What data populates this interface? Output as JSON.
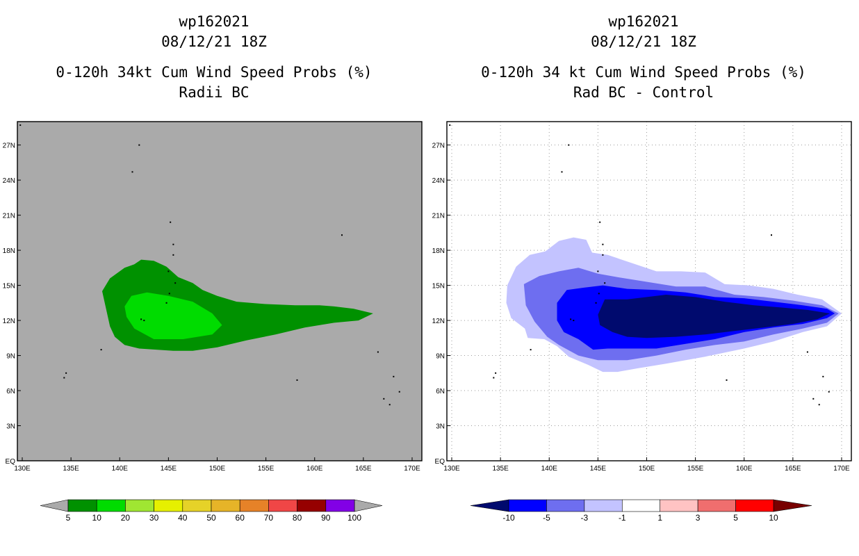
{
  "colors": {
    "panel_left_bg": "#aaaaaa",
    "green_dark": "#009100",
    "green_light": "#00dc00",
    "navy": "#000a6e",
    "blue": "#0000ff",
    "blue_mid": "#6e6ef0",
    "lavender": "#c3c3ff"
  },
  "chart_data": [
    {
      "type": "heatmap",
      "id": "left",
      "title_lines": [
        "wp162021",
        "08/12/21 18Z",
        "0-120h 34kt Cum Wind Speed Probs (%)",
        "Radii BC"
      ],
      "xlim": [
        129.5,
        171
      ],
      "ylim": [
        0,
        29
      ],
      "x_ticks": [
        130,
        135,
        140,
        145,
        150,
        155,
        160,
        165,
        170
      ],
      "x_tick_labels": [
        "130E",
        "135E",
        "140E",
        "145E",
        "150E",
        "155E",
        "160E",
        "165E",
        "170E"
      ],
      "y_ticks": [
        0,
        3,
        6,
        9,
        12,
        15,
        18,
        21,
        24,
        27
      ],
      "y_tick_labels": [
        "EQ",
        "3N",
        "6N",
        "9N",
        "12N",
        "15N",
        "18N",
        "21N",
        "24N",
        "27N"
      ],
      "grid": false,
      "contours": [
        {
          "level": 5,
          "color": "#009100",
          "points": [
            [
              138.2,
              14.5
            ],
            [
              139.0,
              15.6
            ],
            [
              140.5,
              16.5
            ],
            [
              141.5,
              16.8
            ],
            [
              142.2,
              17.2
            ],
            [
              143.5,
              17.1
            ],
            [
              144.8,
              16.6
            ],
            [
              146.0,
              15.7
            ],
            [
              147.5,
              15.2
            ],
            [
              148.5,
              14.6
            ],
            [
              150.0,
              14.1
            ],
            [
              152.0,
              13.6
            ],
            [
              155.0,
              13.4
            ],
            [
              158.0,
              13.3
            ],
            [
              160.5,
              13.3
            ],
            [
              162.0,
              13.2
            ],
            [
              164.0,
              13.0
            ],
            [
              166.0,
              12.6
            ],
            [
              164.5,
              12.0
            ],
            [
              162.0,
              11.8
            ],
            [
              159.0,
              11.4
            ],
            [
              156.0,
              10.8
            ],
            [
              153.0,
              10.3
            ],
            [
              150.0,
              9.7
            ],
            [
              147.5,
              9.4
            ],
            [
              145.5,
              9.4
            ],
            [
              142.0,
              9.6
            ],
            [
              140.5,
              9.9
            ],
            [
              139.5,
              10.6
            ],
            [
              139.0,
              11.5
            ],
            [
              138.6,
              13.0
            ]
          ]
        },
        {
          "level": 10,
          "color": "#00dc00",
          "points": [
            [
              140.5,
              13.2
            ],
            [
              141.2,
              14.1
            ],
            [
              142.8,
              14.4
            ],
            [
              145.0,
              14.1
            ],
            [
              147.5,
              13.6
            ],
            [
              149.5,
              12.6
            ],
            [
              150.5,
              11.6
            ],
            [
              149.5,
              10.8
            ],
            [
              146.5,
              10.4
            ],
            [
              143.5,
              10.4
            ],
            [
              141.5,
              11.3
            ],
            [
              140.7,
              12.3
            ]
          ]
        }
      ],
      "colorbar": {
        "labels": [
          "5",
          "10",
          "20",
          "30",
          "40",
          "50",
          "60",
          "70",
          "80",
          "90",
          "100"
        ],
        "colors": [
          "#009100",
          "#00dc00",
          "#a0e632",
          "#e6f000",
          "#e6d228",
          "#e6b428",
          "#e68228",
          "#f04646",
          "#960000",
          "#8200e6"
        ],
        "end_colors": [
          "#aaaaaa",
          "#aaaaaa"
        ]
      }
    },
    {
      "type": "heatmap",
      "id": "right",
      "title_lines": [
        "wp162021",
        "08/12/21 18Z",
        "0-120h 34 kt Cum Wind Speed Probs (%)",
        "Rad BC - Control"
      ],
      "xlim": [
        129.5,
        171
      ],
      "ylim": [
        0,
        29
      ],
      "x_ticks": [
        130,
        135,
        140,
        145,
        150,
        155,
        160,
        165,
        170
      ],
      "x_tick_labels": [
        "130E",
        "135E",
        "140E",
        "145E",
        "150E",
        "155E",
        "160E",
        "165E",
        "170E"
      ],
      "y_ticks": [
        0,
        3,
        6,
        9,
        12,
        15,
        18,
        21,
        24,
        27
      ],
      "y_tick_labels": [
        "EQ",
        "3N",
        "6N",
        "9N",
        "12N",
        "15N",
        "18N",
        "21N",
        "24N",
        "27N"
      ],
      "grid": true,
      "contours": [
        {
          "level": -1,
          "color": "#c3c3ff",
          "points": [
            [
              135.7,
              15.0
            ],
            [
              136.6,
              16.6
            ],
            [
              138.0,
              17.6
            ],
            [
              139.6,
              17.9
            ],
            [
              141.0,
              18.8
            ],
            [
              142.5,
              19.1
            ],
            [
              143.8,
              18.9
            ],
            [
              144.4,
              17.8
            ],
            [
              146.0,
              17.6
            ],
            [
              148.5,
              16.9
            ],
            [
              151.0,
              16.2
            ],
            [
              153.5,
              16.2
            ],
            [
              156.0,
              16.1
            ],
            [
              158.0,
              15.1
            ],
            [
              160.5,
              15.0
            ],
            [
              163.0,
              14.7
            ],
            [
              165.5,
              14.2
            ],
            [
              168.0,
              13.8
            ],
            [
              170.0,
              12.6
            ],
            [
              168.5,
              11.5
            ],
            [
              166.0,
              11.0
            ],
            [
              163.0,
              10.2
            ],
            [
              160.0,
              9.6
            ],
            [
              156.0,
              8.9
            ],
            [
              152.0,
              8.3
            ],
            [
              149.0,
              7.9
            ],
            [
              147.0,
              7.6
            ],
            [
              145.5,
              7.6
            ],
            [
              144.0,
              8.2
            ],
            [
              142.0,
              8.9
            ],
            [
              140.8,
              9.8
            ],
            [
              139.5,
              10.4
            ],
            [
              137.8,
              10.5
            ],
            [
              137.5,
              11.3
            ],
            [
              136.1,
              12.2
            ],
            [
              135.6,
              13.5
            ]
          ]
        },
        {
          "level": -3,
          "color": "#6e6ef0",
          "points": [
            [
              137.4,
              15.1
            ],
            [
              139.0,
              15.8
            ],
            [
              141.0,
              16.2
            ],
            [
              143.0,
              16.5
            ],
            [
              145.0,
              16.0
            ],
            [
              147.0,
              15.7
            ],
            [
              150.0,
              15.3
            ],
            [
              153.0,
              14.9
            ],
            [
              156.0,
              14.9
            ],
            [
              159.0,
              14.2
            ],
            [
              162.0,
              14.0
            ],
            [
              165.0,
              13.7
            ],
            [
              168.0,
              13.3
            ],
            [
              169.7,
              12.6
            ],
            [
              168.5,
              11.8
            ],
            [
              166.0,
              11.3
            ],
            [
              163.0,
              10.8
            ],
            [
              160.0,
              10.2
            ],
            [
              157.0,
              9.9
            ],
            [
              154.0,
              9.5
            ],
            [
              151.0,
              9.0
            ],
            [
              148.0,
              8.6
            ],
            [
              145.0,
              8.6
            ],
            [
              143.0,
              9.0
            ],
            [
              141.0,
              9.9
            ],
            [
              139.8,
              10.6
            ],
            [
              138.5,
              11.9
            ],
            [
              137.6,
              13.3
            ]
          ]
        },
        {
          "level": -5,
          "color": "#0000ff",
          "points": [
            [
              140.8,
              13.5
            ],
            [
              141.8,
              14.6
            ],
            [
              143.5,
              14.8
            ],
            [
              145.5,
              15.0
            ],
            [
              148.0,
              14.7
            ],
            [
              151.0,
              14.6
            ],
            [
              154.0,
              14.4
            ],
            [
              157.0,
              14.0
            ],
            [
              160.0,
              13.9
            ],
            [
              163.0,
              13.6
            ],
            [
              166.0,
              13.3
            ],
            [
              168.5,
              13.0
            ],
            [
              169.3,
              12.6
            ],
            [
              168.5,
              12.2
            ],
            [
              166.0,
              11.7
            ],
            [
              163.0,
              11.4
            ],
            [
              160.0,
              11.0
            ],
            [
              157.0,
              10.4
            ],
            [
              154.0,
              10.0
            ],
            [
              151.0,
              9.6
            ],
            [
              148.0,
              9.6
            ],
            [
              146.0,
              9.6
            ],
            [
              144.5,
              9.5
            ],
            [
              143.0,
              10.4
            ],
            [
              141.5,
              11.0
            ],
            [
              140.8,
              12.0
            ]
          ]
        },
        {
          "level": -10,
          "color": "#000a6e",
          "points": [
            [
              145.0,
              12.5
            ],
            [
              145.7,
              13.8
            ],
            [
              148.0,
              13.8
            ],
            [
              150.0,
              14.0
            ],
            [
              152.0,
              14.2
            ],
            [
              155.0,
              14.0
            ],
            [
              158.0,
              13.6
            ],
            [
              161.0,
              13.3
            ],
            [
              164.0,
              13.1
            ],
            [
              166.5,
              12.9
            ],
            [
              168.8,
              12.6
            ],
            [
              167.5,
              12.1
            ],
            [
              165.0,
              11.7
            ],
            [
              162.0,
              11.4
            ],
            [
              159.0,
              11.1
            ],
            [
              156.0,
              10.8
            ],
            [
              153.0,
              10.6
            ],
            [
              150.0,
              10.5
            ],
            [
              148.0,
              10.6
            ],
            [
              146.5,
              11.0
            ],
            [
              145.2,
              11.6
            ]
          ]
        }
      ],
      "colorbar": {
        "labels": [
          "-10",
          "-5",
          "-3",
          "-1",
          "1",
          "3",
          "5",
          "10"
        ],
        "colors": [
          "#0000ff",
          "#6e6ef0",
          "#c3c3ff",
          "#ffffff",
          "#ffc3c3",
          "#f06e6e",
          "#ff0000"
        ],
        "end_colors": [
          "#000a6e",
          "#780000"
        ]
      }
    }
  ]
}
